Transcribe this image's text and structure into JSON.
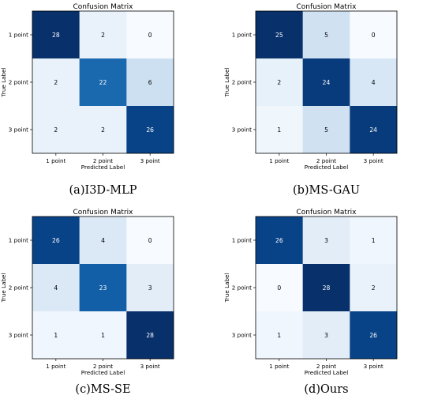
{
  "chart_data": [
    {
      "type": "heatmap",
      "title": "Confusion Matrix",
      "xlabel": "Predicted Label",
      "ylabel": "True Label",
      "x_categories": [
        "1 point",
        "2 point",
        "3 point"
      ],
      "y_categories": [
        "1 point",
        "2 point",
        "3 point"
      ],
      "values": [
        [
          28,
          2,
          0
        ],
        [
          2,
          22,
          6
        ],
        [
          2,
          2,
          26
        ]
      ],
      "colormap": "Blues",
      "caption": "(a)I3D-MLP"
    },
    {
      "type": "heatmap",
      "title": "Confusion Matrix",
      "xlabel": "Predicted Label",
      "ylabel": "True Label",
      "x_categories": [
        "1 point",
        "2 point",
        "3 point"
      ],
      "y_categories": [
        "1 point",
        "2 point",
        "3 point"
      ],
      "values": [
        [
          25,
          5,
          0
        ],
        [
          2,
          24,
          4
        ],
        [
          1,
          5,
          24
        ]
      ],
      "colormap": "Blues",
      "caption": "(b)MS-GAU"
    },
    {
      "type": "heatmap",
      "title": "Confusion Matrix",
      "xlabel": "Predicted Label",
      "ylabel": "True Label",
      "x_categories": [
        "1 point",
        "2 point",
        "3 point"
      ],
      "y_categories": [
        "1 point",
        "2 point",
        "3 point"
      ],
      "values": [
        [
          26,
          4,
          0
        ],
        [
          4,
          23,
          3
        ],
        [
          1,
          1,
          28
        ]
      ],
      "colormap": "Blues",
      "caption": "(c)MS-SE"
    },
    {
      "type": "heatmap",
      "title": "Confusion Matrix",
      "xlabel": "Predicted Label",
      "ylabel": "True Label",
      "x_categories": [
        "1 point",
        "2 point",
        "3 point"
      ],
      "y_categories": [
        "1 point",
        "2 point",
        "3 point"
      ],
      "values": [
        [
          26,
          3,
          1
        ],
        [
          0,
          28,
          2
        ],
        [
          1,
          3,
          26
        ]
      ],
      "colormap": "Blues",
      "caption": "(d)Ours"
    }
  ]
}
